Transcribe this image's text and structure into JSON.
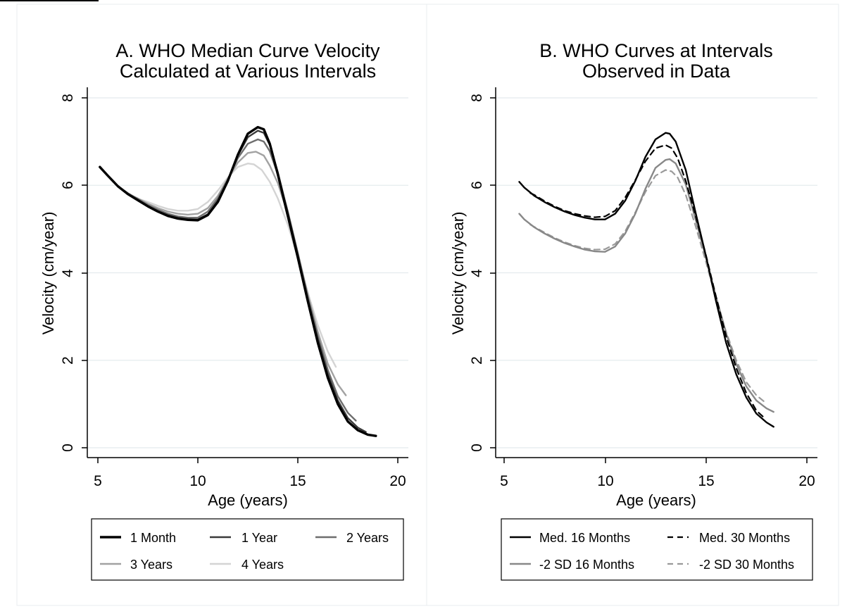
{
  "chart_data": [
    {
      "type": "line",
      "title": [
        "A. WHO Median Curve Velocity",
        "Calculated at Various Intervals"
      ],
      "xlabel": "Age (years)",
      "ylabel": "Velocity (cm/year)",
      "xlim": [
        4.8,
        20.5
      ],
      "ylim": [
        -0.2,
        8.2
      ],
      "xticks": [
        "5",
        "10",
        "15",
        "20"
      ],
      "yticks": [
        "0",
        "2",
        "4",
        "6",
        "8"
      ],
      "grid": "horizontal",
      "legend_position": "bottom",
      "legend_columns": 3,
      "series": [
        {
          "name": "1 Month",
          "color": "#000000",
          "dash": "solid",
          "width": 3.4,
          "x": [
            5.1,
            5.5,
            6,
            6.5,
            7,
            7.5,
            8,
            8.5,
            9,
            9.5,
            10,
            10.5,
            11,
            11.5,
            12,
            12.5,
            13,
            13.3,
            13.6,
            14,
            14.5,
            15,
            15.5,
            16,
            16.5,
            17,
            17.5,
            18,
            18.5,
            18.9
          ],
          "y": [
            6.42,
            6.22,
            5.98,
            5.8,
            5.66,
            5.52,
            5.4,
            5.3,
            5.24,
            5.21,
            5.2,
            5.32,
            5.62,
            6.1,
            6.7,
            7.18,
            7.33,
            7.28,
            6.95,
            6.25,
            5.3,
            4.35,
            3.35,
            2.4,
            1.6,
            1.0,
            0.6,
            0.4,
            0.3,
            0.27
          ]
        },
        {
          "name": "1 Year",
          "color": "#3a3a3a",
          "dash": "solid",
          "width": 2.4,
          "x": [
            5.6,
            6,
            6.5,
            7,
            7.5,
            8,
            8.5,
            9,
            9.5,
            10,
            10.5,
            11,
            11.5,
            12,
            12.5,
            13,
            13.3,
            13.6,
            14,
            14.5,
            15,
            15.5,
            16,
            16.5,
            17,
            17.5,
            18,
            18.4
          ],
          "y": [
            6.18,
            5.98,
            5.8,
            5.67,
            5.53,
            5.41,
            5.32,
            5.26,
            5.23,
            5.22,
            5.34,
            5.65,
            6.12,
            6.68,
            7.1,
            7.25,
            7.2,
            6.92,
            6.3,
            5.38,
            4.42,
            3.4,
            2.48,
            1.68,
            1.08,
            0.68,
            0.46,
            0.36
          ]
        },
        {
          "name": "2 Years",
          "color": "#6e6e6e",
          "dash": "solid",
          "width": 2.4,
          "x": [
            6.1,
            6.5,
            7,
            7.5,
            8,
            8.5,
            9,
            9.5,
            10,
            10.5,
            11,
            11.5,
            12,
            12.5,
            13,
            13.3,
            13.6,
            14,
            14.5,
            15,
            15.5,
            16,
            16.5,
            17,
            17.5,
            17.9
          ],
          "y": [
            5.95,
            5.82,
            5.69,
            5.55,
            5.44,
            5.35,
            5.29,
            5.26,
            5.26,
            5.4,
            5.7,
            6.14,
            6.62,
            6.95,
            7.05,
            7.0,
            6.78,
            6.25,
            5.4,
            4.45,
            3.45,
            2.55,
            1.78,
            1.18,
            0.8,
            0.62
          ]
        },
        {
          "name": "3 Years",
          "color": "#a2a2a2",
          "dash": "solid",
          "width": 2.4,
          "x": [
            6.6,
            7,
            7.5,
            8,
            8.5,
            9,
            9.5,
            10,
            10.5,
            11,
            11.5,
            12,
            12.5,
            12.9,
            13.3,
            13.6,
            14,
            14.5,
            15,
            15.5,
            16,
            16.5,
            17,
            17.4
          ],
          "y": [
            5.78,
            5.7,
            5.58,
            5.48,
            5.4,
            5.35,
            5.33,
            5.35,
            5.48,
            5.76,
            6.15,
            6.52,
            6.74,
            6.77,
            6.68,
            6.45,
            6.05,
            5.35,
            4.45,
            3.5,
            2.65,
            1.92,
            1.45,
            1.2
          ]
        },
        {
          "name": "4 Years",
          "color": "#d4d4d4",
          "dash": "solid",
          "width": 2.4,
          "x": [
            7.1,
            7.5,
            8,
            8.5,
            9,
            9.5,
            10,
            10.5,
            11,
            11.5,
            12,
            12.5,
            12.8,
            13.2,
            13.6,
            14,
            14.5,
            15,
            15.5,
            16,
            16.5,
            16.9
          ],
          "y": [
            5.68,
            5.62,
            5.53,
            5.46,
            5.42,
            5.42,
            5.46,
            5.62,
            5.88,
            6.18,
            6.42,
            6.5,
            6.48,
            6.35,
            6.08,
            5.7,
            5.1,
            4.35,
            3.55,
            2.8,
            2.2,
            1.85
          ]
        }
      ]
    },
    {
      "type": "line",
      "title": [
        "B. WHO Curves at Intervals",
        "Observed in Data"
      ],
      "xlabel": "Age (years)",
      "ylabel": "Velocity (cm/year)",
      "xlim": [
        4.8,
        20.5
      ],
      "ylim": [
        -0.2,
        8.2
      ],
      "xticks": [
        "5",
        "10",
        "15",
        "20"
      ],
      "yticks": [
        "0",
        "2",
        "4",
        "6",
        "8"
      ],
      "grid": "horizontal",
      "legend_position": "bottom",
      "legend_columns": 2,
      "series": [
        {
          "name": "Med. 16 Months",
          "color": "#000000",
          "dash": "solid",
          "width": 2.4,
          "x": [
            5.75,
            6,
            6.5,
            7,
            7.5,
            8,
            8.5,
            9,
            9.5,
            10,
            10.5,
            11,
            11.5,
            12,
            12.5,
            13,
            13.2,
            13.5,
            14,
            14.5,
            15,
            15.5,
            16,
            16.5,
            17,
            17.5,
            18,
            18.35
          ],
          "y": [
            6.08,
            5.95,
            5.76,
            5.62,
            5.5,
            5.4,
            5.32,
            5.26,
            5.22,
            5.22,
            5.35,
            5.65,
            6.1,
            6.65,
            7.05,
            7.2,
            7.18,
            7.0,
            6.35,
            5.35,
            4.38,
            3.35,
            2.4,
            1.68,
            1.15,
            0.78,
            0.58,
            0.48
          ]
        },
        {
          "name": "Med. 30 Months",
          "color": "#000000",
          "dash": "8,6",
          "width": 2.2,
          "x": [
            6.3,
            6.5,
            7,
            7.5,
            8,
            8.5,
            9,
            9.5,
            10,
            10.5,
            11,
            11.5,
            12,
            12.5,
            13,
            13.3,
            13.6,
            14,
            14.5,
            15,
            15.5,
            16,
            16.5,
            17,
            17.5,
            17.9
          ],
          "y": [
            5.82,
            5.78,
            5.64,
            5.52,
            5.42,
            5.35,
            5.3,
            5.27,
            5.29,
            5.42,
            5.72,
            6.12,
            6.55,
            6.85,
            6.92,
            6.85,
            6.62,
            6.1,
            5.28,
            4.4,
            3.45,
            2.55,
            1.82,
            1.25,
            0.85,
            0.68
          ]
        },
        {
          "name": "-2 SD 16 Months",
          "color": "#888888",
          "dash": "solid",
          "width": 2.4,
          "x": [
            5.75,
            6,
            6.5,
            7,
            7.5,
            8,
            8.5,
            9,
            9.5,
            10,
            10.5,
            11,
            11.5,
            12,
            12.5,
            13,
            13.2,
            13.5,
            14,
            14.5,
            15,
            15.5,
            16,
            16.5,
            17,
            17.5,
            18,
            18.35
          ],
          "y": [
            5.35,
            5.22,
            5.04,
            4.9,
            4.78,
            4.68,
            4.6,
            4.53,
            4.49,
            4.48,
            4.6,
            4.9,
            5.35,
            5.92,
            6.4,
            6.58,
            6.6,
            6.5,
            6.02,
            5.2,
            4.35,
            3.45,
            2.62,
            1.92,
            1.4,
            1.08,
            0.9,
            0.82
          ]
        },
        {
          "name": "-2 SD 30 Months",
          "color": "#9a9a9a",
          "dash": "8,6",
          "width": 2.2,
          "x": [
            6.3,
            6.5,
            7,
            7.5,
            8,
            8.5,
            9,
            9.5,
            10,
            10.5,
            11,
            11.5,
            12,
            12.5,
            13,
            13.3,
            13.6,
            14,
            14.5,
            15,
            15.5,
            16,
            16.5,
            17,
            17.5,
            17.9
          ],
          "y": [
            5.1,
            5.05,
            4.92,
            4.8,
            4.7,
            4.62,
            4.56,
            4.53,
            4.54,
            4.66,
            4.95,
            5.38,
            5.85,
            6.22,
            6.35,
            6.32,
            6.18,
            5.78,
            5.05,
            4.25,
            3.4,
            2.65,
            2.0,
            1.5,
            1.2,
            1.05
          ]
        }
      ]
    }
  ]
}
